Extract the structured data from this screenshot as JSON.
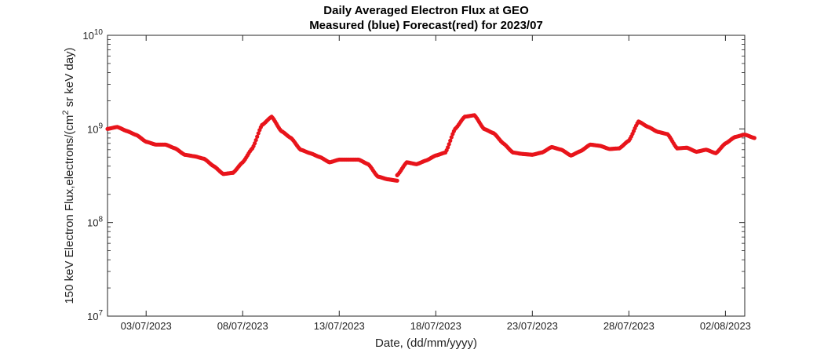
{
  "chart_data": {
    "type": "scatter",
    "title": "Daily Averaged Electron Flux at GEO",
    "subtitle": "Measured (blue) Forecast(red) for 2023/07",
    "xlabel": "Date, (dd/mm/yyyy)",
    "ylabel": "150 keV Electron Flux,electrons/(cm² sr keV day)",
    "ylabel_parts": {
      "before": "150 keV Electron Flux,electrons/(cm",
      "sup": "2",
      "after": " sr keV day)"
    },
    "y_scale": "log",
    "ylim": [
      10000000,
      10000000000
    ],
    "y_ticks": [
      {
        "value": 10000000,
        "base": "10",
        "exp": "7"
      },
      {
        "value": 100000000,
        "base": "10",
        "exp": "8"
      },
      {
        "value": 1000000000,
        "base": "10",
        "exp": "9"
      },
      {
        "value": 10000000000,
        "base": "10",
        "exp": "10"
      }
    ],
    "xlim": [
      "2023-07-01T00:00",
      "2023-08-03T00:00"
    ],
    "x_ticks": [
      {
        "value": "2023-07-03",
        "label": "03/07/2023"
      },
      {
        "value": "2023-07-08",
        "label": "08/07/2023"
      },
      {
        "value": "2023-07-13",
        "label": "13/07/2023"
      },
      {
        "value": "2023-07-18",
        "label": "18/07/2023"
      },
      {
        "value": "2023-07-23",
        "label": "23/07/2023"
      },
      {
        "value": "2023-07-28",
        "label": "28/07/2023"
      },
      {
        "value": "2023-08-02",
        "label": "02/08/2023"
      }
    ],
    "grid": false,
    "series": [
      {
        "color": "#e8141b",
        "segments": [
          [
            [
              "2023-07-01T00:00",
              1000000000
            ],
            [
              "2023-07-01T12:00",
              1050000000
            ],
            [
              "2023-07-02T00:00",
              950000000
            ],
            [
              "2023-07-02T12:00",
              860000000
            ],
            [
              "2023-07-03T00:00",
              730000000
            ],
            [
              "2023-07-03T12:00",
              680000000
            ],
            [
              "2023-07-04T00:00",
              680000000
            ],
            [
              "2023-07-04T12:00",
              620000000
            ],
            [
              "2023-07-05T00:00",
              530000000
            ],
            [
              "2023-07-05T12:00",
              510000000
            ],
            [
              "2023-07-06T00:00",
              480000000
            ],
            [
              "2023-07-06T12:00",
              400000000
            ],
            [
              "2023-07-07T00:00",
              330000000
            ],
            [
              "2023-07-07T12:00",
              340000000
            ],
            [
              "2023-07-08T00:00",
              440000000
            ],
            [
              "2023-07-08T12:00",
              620000000
            ],
            [
              "2023-07-09T00:00",
              1100000000
            ],
            [
              "2023-07-09T12:00",
              1350000000
            ],
            [
              "2023-07-10T00:00",
              950000000
            ],
            [
              "2023-07-10T12:00",
              800000000
            ],
            [
              "2023-07-11T00:00",
              600000000
            ],
            [
              "2023-07-11T12:00",
              550000000
            ],
            [
              "2023-07-12T00:00",
              500000000
            ],
            [
              "2023-07-12T12:00",
              440000000
            ],
            [
              "2023-07-13T00:00",
              470000000
            ],
            [
              "2023-07-13T12:00",
              470000000
            ],
            [
              "2023-07-14T00:00",
              470000000
            ],
            [
              "2023-07-14T12:00",
              420000000
            ],
            [
              "2023-07-15T00:00",
              310000000
            ],
            [
              "2023-07-15T12:00",
              290000000
            ],
            [
              "2023-07-16T00:00",
              280000000
            ]
          ],
          [
            [
              "2023-07-16T00:00",
              320000000
            ],
            [
              "2023-07-16T12:00",
              440000000
            ],
            [
              "2023-07-17T00:00",
              420000000
            ],
            [
              "2023-07-17T12:00",
              460000000
            ],
            [
              "2023-07-18T00:00",
              520000000
            ],
            [
              "2023-07-18T12:00",
              560000000
            ],
            [
              "2023-07-19T00:00",
              1000000000
            ],
            [
              "2023-07-19T12:00",
              1350000000
            ],
            [
              "2023-07-20T00:00",
              1400000000
            ],
            [
              "2023-07-20T12:00",
              1000000000
            ],
            [
              "2023-07-21T00:00",
              900000000
            ],
            [
              "2023-07-21T12:00",
              700000000
            ],
            [
              "2023-07-22T00:00",
              560000000
            ],
            [
              "2023-07-22T12:00",
              540000000
            ],
            [
              "2023-07-23T00:00",
              530000000
            ],
            [
              "2023-07-23T12:00",
              560000000
            ],
            [
              "2023-07-24T00:00",
              640000000
            ],
            [
              "2023-07-24T12:00",
              600000000
            ],
            [
              "2023-07-25T00:00",
              520000000
            ],
            [
              "2023-07-25T12:00",
              580000000
            ],
            [
              "2023-07-26T00:00",
              680000000
            ],
            [
              "2023-07-26T12:00",
              660000000
            ],
            [
              "2023-07-27T00:00",
              610000000
            ],
            [
              "2023-07-27T12:00",
              620000000
            ],
            [
              "2023-07-28T00:00",
              750000000
            ],
            [
              "2023-07-28T12:00",
              1200000000
            ],
            [
              "2023-07-29T00:00",
              1050000000
            ],
            [
              "2023-07-29T12:00",
              930000000
            ],
            [
              "2023-07-30T00:00",
              880000000
            ],
            [
              "2023-07-30T12:00",
              620000000
            ],
            [
              "2023-07-31T00:00",
              630000000
            ],
            [
              "2023-07-31T12:00",
              570000000
            ],
            [
              "2023-08-01T00:00",
              600000000
            ],
            [
              "2023-08-01T12:00",
              550000000
            ],
            [
              "2023-08-02T00:00",
              700000000
            ],
            [
              "2023-08-02T12:00",
              820000000
            ],
            [
              "2023-08-03T00:00",
              870000000
            ],
            [
              "2023-08-03T12:00",
              800000000
            ]
          ]
        ]
      }
    ]
  }
}
